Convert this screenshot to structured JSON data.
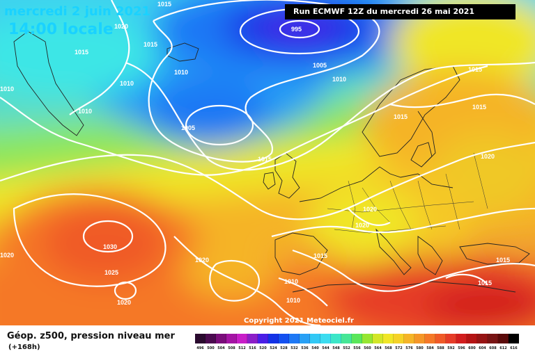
{
  "header": {
    "date": "mercredi 2 juin 2021",
    "time": "14:00 locale",
    "run": "Run ECMWF 12Z du mercredi 26 mai 2021",
    "copyright": "Copyright 2021 Meteociel.fr"
  },
  "legend": {
    "title": "Géop. z500, pression niveau mer",
    "subtitle": "(+168h)",
    "scale": [
      {
        "label": "496",
        "color": "#2a0a2e"
      },
      {
        "label": "500",
        "color": "#4b0a4f"
      },
      {
        "label": "504",
        "color": "#7a0d7a"
      },
      {
        "label": "508",
        "color": "#a414a4"
      },
      {
        "label": "512",
        "color": "#c81ec8"
      },
      {
        "label": "516",
        "color": "#8c1ec8"
      },
      {
        "label": "520",
        "color": "#4a1ee6"
      },
      {
        "label": "524",
        "color": "#1432e6"
      },
      {
        "label": "528",
        "color": "#1450f0"
      },
      {
        "label": "532",
        "color": "#1e78f5"
      },
      {
        "label": "536",
        "color": "#28a0f5"
      },
      {
        "label": "540",
        "color": "#32c8f5"
      },
      {
        "label": "544",
        "color": "#3cdcf0"
      },
      {
        "label": "548",
        "color": "#3ce6c8"
      },
      {
        "label": "552",
        "color": "#46e696"
      },
      {
        "label": "556",
        "color": "#5ae65a"
      },
      {
        "label": "560",
        "color": "#96e632"
      },
      {
        "label": "564",
        "color": "#d2e628"
      },
      {
        "label": "568",
        "color": "#f0e628"
      },
      {
        "label": "572",
        "color": "#f5d228"
      },
      {
        "label": "576",
        "color": "#f5b428"
      },
      {
        "label": "580",
        "color": "#f59628"
      },
      {
        "label": "584",
        "color": "#f57828"
      },
      {
        "label": "588",
        "color": "#f05a28"
      },
      {
        "label": "592",
        "color": "#e63c28"
      },
      {
        "label": "596",
        "color": "#d21e1e"
      },
      {
        "label": "600",
        "color": "#b41414"
      },
      {
        "label": "604",
        "color": "#961414"
      },
      {
        "label": "608",
        "color": "#781414"
      },
      {
        "label": "612",
        "color": "#5a0a0a"
      },
      {
        "label": "616",
        "color": "#000000"
      }
    ]
  },
  "isobar_labels": [
    {
      "text": "1015"
    },
    {
      "text": "1020"
    },
    {
      "text": "1015"
    },
    {
      "text": "995"
    },
    {
      "text": "1010"
    },
    {
      "text": "1005"
    },
    {
      "text": "1010"
    },
    {
      "text": "1010"
    },
    {
      "text": "1010"
    },
    {
      "text": "1005"
    },
    {
      "text": "1015"
    },
    {
      "text": "1015"
    },
    {
      "text": "1015"
    },
    {
      "text": "1015"
    },
    {
      "text": "1020"
    },
    {
      "text": "1020"
    },
    {
      "text": "1020"
    },
    {
      "text": "1030"
    },
    {
      "text": "1025"
    },
    {
      "text": "1020"
    },
    {
      "text": "1020"
    },
    {
      "text": "1020"
    },
    {
      "text": "1015"
    },
    {
      "text": "1010"
    },
    {
      "text": "1010"
    },
    {
      "text": "1015"
    },
    {
      "text": "1015"
    },
    {
      "text": "1010"
    },
    {
      "text": "1015"
    }
  ]
}
